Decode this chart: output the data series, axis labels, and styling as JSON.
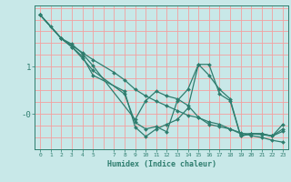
{
  "xlabel": "Humidex (Indice chaleur)",
  "bg_color": "#c8e8e8",
  "grid_color": "#f4a0a0",
  "line_color": "#2e7d6e",
  "xlim": [
    -0.5,
    23.5
  ],
  "ylim": [
    -0.75,
    2.3
  ],
  "x_ticks": [
    0,
    1,
    2,
    3,
    4,
    5,
    7,
    8,
    9,
    10,
    11,
    12,
    13,
    14,
    15,
    16,
    17,
    18,
    19,
    20,
    21,
    22,
    23
  ],
  "y_ticks": [
    1.0,
    0.0
  ],
  "y_tick_labels": [
    "1",
    "-0"
  ],
  "series": [
    {
      "x": [
        0,
        1,
        2,
        3,
        4,
        5,
        7,
        8,
        9,
        10,
        11,
        12,
        13,
        14,
        15,
        16,
        17,
        18,
        19,
        20,
        21,
        22,
        23
      ],
      "y": [
        2.1,
        1.85,
        1.6,
        1.45,
        1.3,
        1.15,
        0.88,
        0.72,
        0.52,
        0.38,
        0.27,
        0.17,
        0.07,
        -0.03,
        -0.08,
        -0.17,
        -0.22,
        -0.32,
        -0.4,
        -0.46,
        -0.5,
        -0.56,
        -0.6
      ]
    },
    {
      "x": [
        0,
        2,
        3,
        4,
        5,
        8,
        9,
        10,
        11,
        12,
        13,
        14,
        15,
        16,
        17,
        18,
        19,
        20,
        21,
        22,
        23
      ],
      "y": [
        2.1,
        1.6,
        1.42,
        1.18,
        0.92,
        0.42,
        -0.18,
        -0.32,
        -0.27,
        -0.38,
        0.28,
        0.52,
        1.05,
        0.82,
        0.52,
        0.32,
        -0.47,
        -0.42,
        -0.42,
        -0.47,
        -0.37
      ]
    },
    {
      "x": [
        0,
        2,
        3,
        4,
        5,
        8,
        9,
        10,
        11,
        12,
        13,
        14,
        15,
        16,
        17,
        18,
        19,
        20,
        21,
        22,
        23
      ],
      "y": [
        2.1,
        1.6,
        1.42,
        1.22,
        0.82,
        0.48,
        -0.28,
        -0.48,
        -0.32,
        -0.22,
        -0.12,
        0.12,
        1.05,
        1.05,
        0.42,
        0.28,
        -0.47,
        -0.42,
        -0.42,
        -0.47,
        -0.22
      ]
    },
    {
      "x": [
        0,
        2,
        3,
        4,
        5,
        9,
        10,
        11,
        12,
        13,
        14,
        15,
        16,
        17,
        18,
        19,
        20,
        21,
        22,
        23
      ],
      "y": [
        2.1,
        1.6,
        1.48,
        1.28,
        1.02,
        -0.12,
        0.28,
        0.48,
        0.38,
        0.32,
        0.18,
        -0.07,
        -0.22,
        -0.27,
        -0.32,
        -0.42,
        -0.42,
        -0.44,
        -0.47,
        -0.32
      ]
    }
  ]
}
